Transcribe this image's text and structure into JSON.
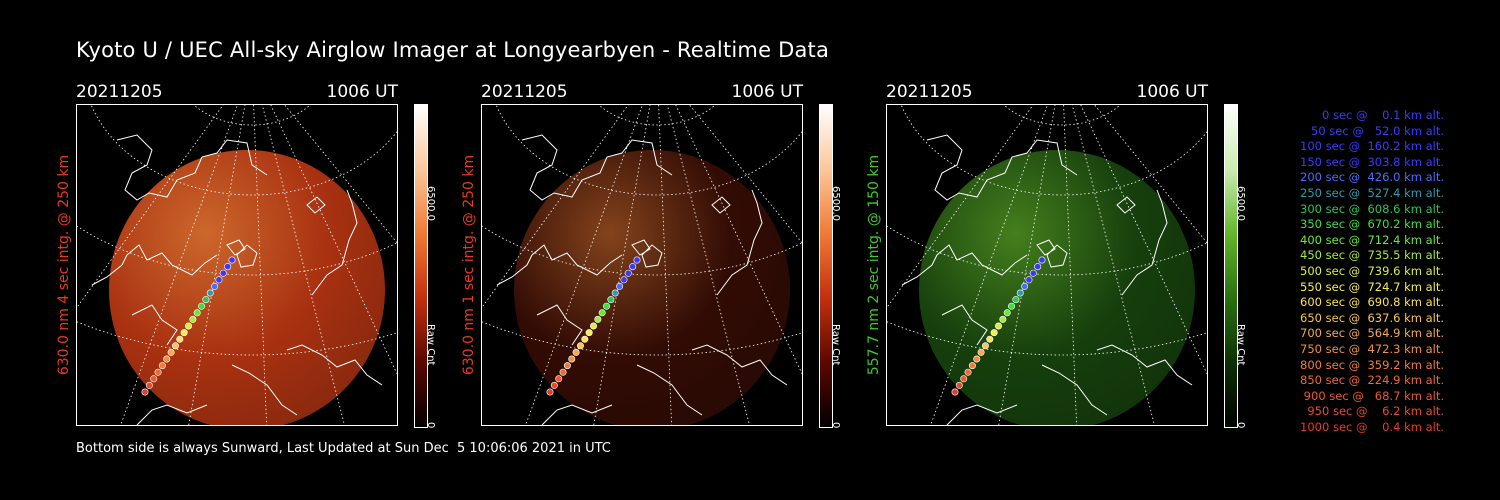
{
  "title": "Kyoto U / UEC All-sky Airglow Imager at Longyearbyen - Realtime Data",
  "footer": "Bottom side is always Sunward, Last Updated at Sun Dec  5 10:06:06 2021 in UTC",
  "panels": [
    {
      "date": "20211205",
      "time": "1006 UT",
      "ylabel": "630.0 nm 4 sec intg. @ 250 km",
      "label_color": "#e83a1c",
      "cbar_max": "6500.0",
      "cbar_unit": "Raw Cnt",
      "cbar_min": "0",
      "colorbar_stops": [
        "#ffffff",
        "#fbc79a",
        "#f07a34",
        "#c2300f",
        "#5a0800",
        "#000000"
      ],
      "image_color": "#c63a14",
      "image_intensity": 0.85
    },
    {
      "date": "20211205",
      "time": "1006 UT",
      "ylabel": "630.0 nm 1 sec intg. @ 250 km",
      "label_color": "#e83a1c",
      "cbar_max": "6500.0",
      "cbar_unit": "Raw Cnt",
      "cbar_min": "0",
      "colorbar_stops": [
        "#ffffff",
        "#fbc79a",
        "#f07a34",
        "#c2300f",
        "#5a0800",
        "#000000"
      ],
      "image_color": "#5a1508",
      "image_intensity": 0.55
    },
    {
      "date": "20211205",
      "time": "1006 UT",
      "ylabel": "557.7 nm 2 sec intg. @ 150 km",
      "label_color": "#3ccc2a",
      "cbar_max": "6500.0",
      "cbar_unit": "Raw Cnt",
      "cbar_min": "0",
      "colorbar_stops": [
        "#ffffff",
        "#c9ecb0",
        "#63b52a",
        "#2a7010",
        "#0c3004",
        "#000000"
      ],
      "image_color": "#1f5a12",
      "image_intensity": 0.7
    }
  ],
  "legend": [
    {
      "text": "   0 sec @    0.1 km alt.",
      "color": "#3a3aff"
    },
    {
      "text": "  50 sec @   52.0 km alt.",
      "color": "#3a3aff"
    },
    {
      "text": " 100 sec @  160.2 km alt.",
      "color": "#3a3aff"
    },
    {
      "text": " 150 sec @  303.8 km alt.",
      "color": "#3a3aff"
    },
    {
      "text": " 200 sec @  426.0 km alt.",
      "color": "#4a6cff"
    },
    {
      "text": " 250 sec @  527.4 km alt.",
      "color": "#2e9bb0"
    },
    {
      "text": " 300 sec @  608.6 km alt.",
      "color": "#2ec45a"
    },
    {
      "text": " 350 sec @  670.2 km alt.",
      "color": "#3ae040"
    },
    {
      "text": " 400 sec @  712.4 km alt.",
      "color": "#6ae83a"
    },
    {
      "text": " 450 sec @  735.5 km alt.",
      "color": "#a6ea3a"
    },
    {
      "text": " 500 sec @  739.6 km alt.",
      "color": "#d8ee44"
    },
    {
      "text": " 550 sec @  724.7 km alt.",
      "color": "#f4ee54"
    },
    {
      "text": " 600 sec @  690.8 km alt.",
      "color": "#fbe058"
    },
    {
      "text": " 650 sec @  637.6 km alt.",
      "color": "#f8c454"
    },
    {
      "text": " 700 sec @  564.9 km alt.",
      "color": "#f4a850"
    },
    {
      "text": " 750 sec @  472.3 km alt.",
      "color": "#f29040"
    },
    {
      "text": " 800 sec @  359.2 km alt.",
      "color": "#f07c3a"
    },
    {
      "text": " 850 sec @  224.9 km alt.",
      "color": "#ee6a34"
    },
    {
      "text": " 900 sec @   68.7 km alt.",
      "color": "#ec5a30"
    },
    {
      "text": " 950 sec @    6.2 km alt.",
      "color": "#ea4a2c"
    },
    {
      "text": "1000 sec @    0.4 km alt.",
      "color": "#e83a28"
    }
  ]
}
